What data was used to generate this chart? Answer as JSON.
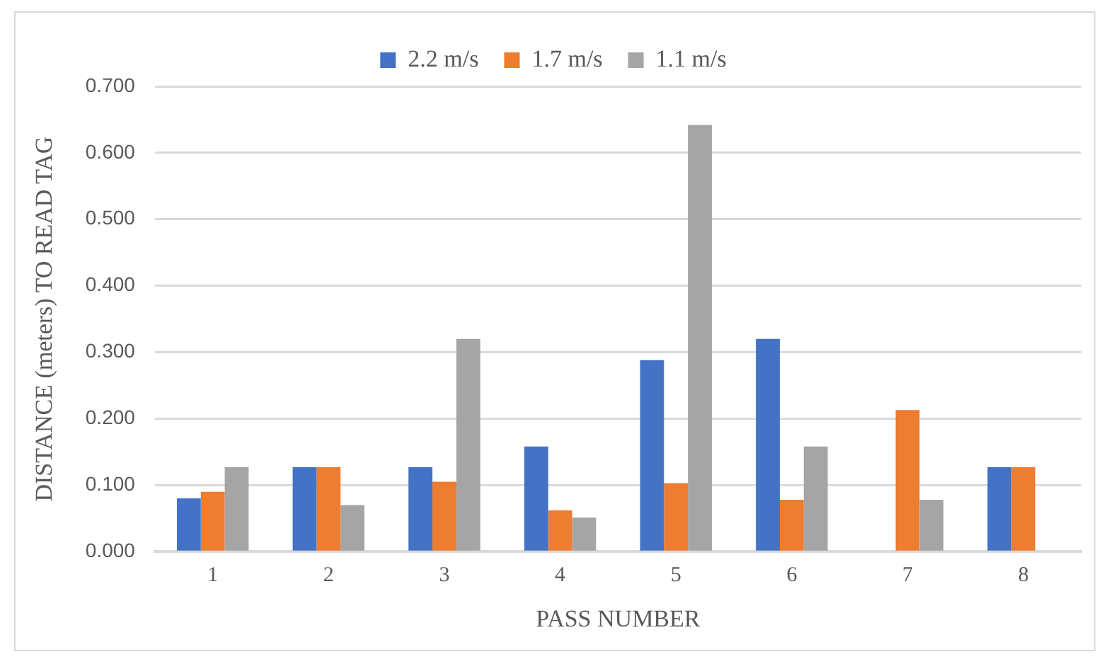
{
  "chart_data": {
    "type": "bar",
    "xlabel": "PASS NUMBER",
    "ylabel": "DISTANCE (meters) TO READ TAG",
    "categories": [
      "1",
      "2",
      "3",
      "4",
      "5",
      "6",
      "7",
      "8"
    ],
    "series": [
      {
        "name": "2.2 m/s",
        "color": "#4472c4",
        "values": [
          0.08,
          0.127,
          0.127,
          0.158,
          0.288,
          0.32,
          null,
          0.127
        ]
      },
      {
        "name": "1.7 m/s",
        "color": "#ed7d31",
        "values": [
          0.09,
          0.127,
          0.105,
          0.062,
          0.103,
          0.078,
          0.213,
          0.127
        ]
      },
      {
        "name": "1.1 m/s",
        "color": "#a5a5a5",
        "values": [
          0.127,
          0.07,
          0.32,
          0.051,
          0.642,
          0.158,
          0.078,
          null
        ]
      }
    ],
    "ylim": [
      0,
      0.7
    ],
    "yticks": [
      {
        "value": 0,
        "label": "0.000"
      },
      {
        "value": 0.1,
        "label": "0.100"
      },
      {
        "value": 0.2,
        "label": "0.200"
      },
      {
        "value": 0.3,
        "label": "0.300"
      },
      {
        "value": 0.4,
        "label": "0.400"
      },
      {
        "value": 0.5,
        "label": "0.500"
      },
      {
        "value": 0.6,
        "label": "0.600"
      },
      {
        "value": 0.7,
        "label": "0.700"
      }
    ],
    "grid": "y",
    "legend": "top"
  }
}
